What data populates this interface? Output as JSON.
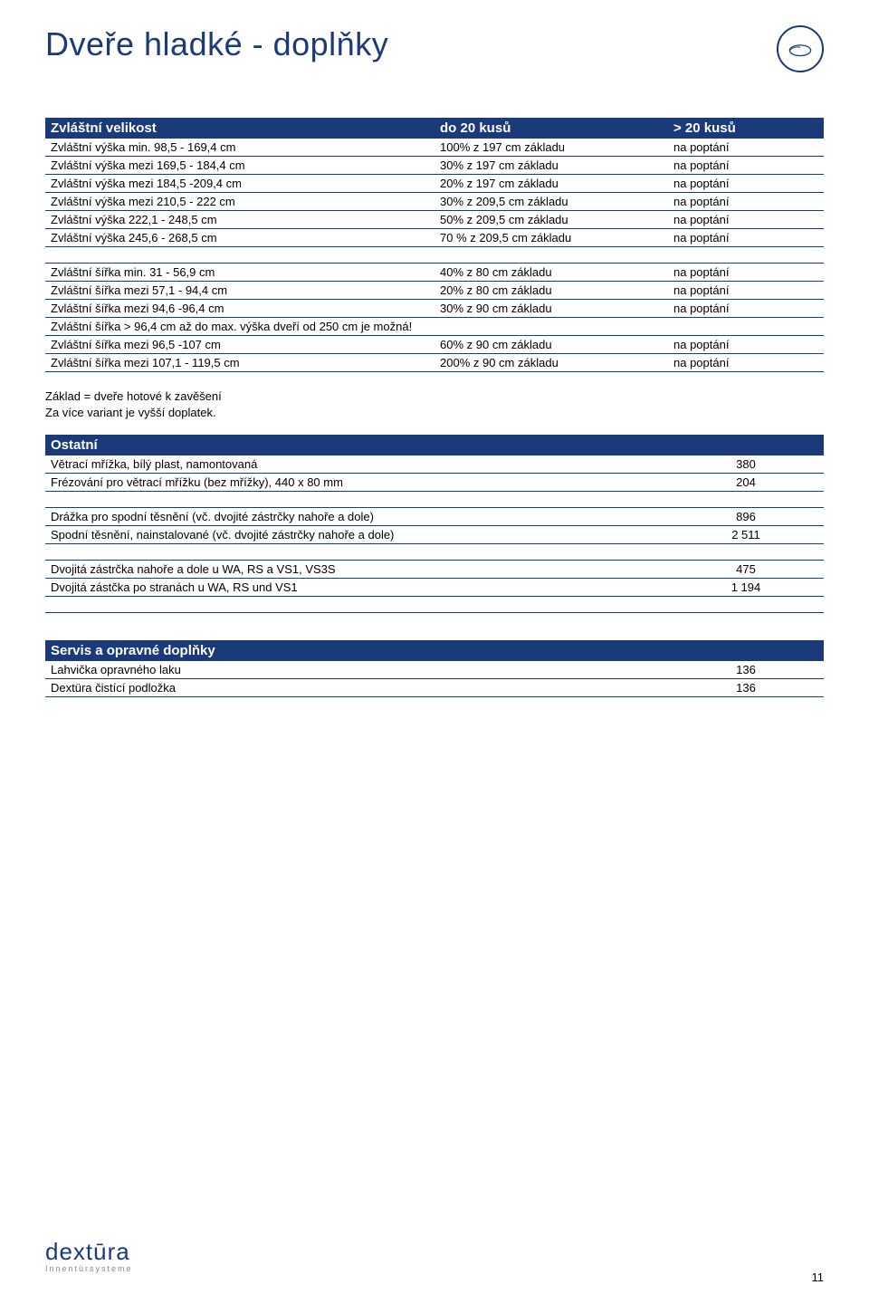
{
  "title": "Dveře hladké - doplňky",
  "page_number": "11",
  "footer_brand": "dextūra",
  "footer_sub": "Innentürsysteme",
  "colors": {
    "header_bg": "#1a3a7a",
    "header_fg": "#ffffff",
    "rule": "#1a3a7a",
    "text": "#000000",
    "bg": "#ffffff"
  },
  "section1": {
    "headers": [
      "Zvláštní velikost",
      "do 20 kusů",
      "> 20 kusů"
    ],
    "rows": [
      [
        "Zvláštní výška min. 98,5 - 169,4 cm",
        "100% z 197 cm základu",
        "na poptání"
      ],
      [
        "Zvláštní výška mezi 169,5 - 184,4 cm",
        "30% z 197 cm základu",
        "na poptání"
      ],
      [
        "Zvláštní výška mezi 184,5 -209,4 cm",
        "20% z 197 cm základu",
        "na poptání"
      ],
      [
        "Zvláštní výška mezi 210,5 - 222 cm",
        "30% z 209,5 cm základu",
        "na poptání"
      ],
      [
        "Zvláštní výška 222,1 - 248,5 cm",
        "50% z 209,5 cm základu",
        "na poptání"
      ],
      [
        "Zvláštní výška 245,6 - 268,5 cm",
        "70 % z 209,5 cm základu",
        "na poptání"
      ]
    ],
    "rows2": [
      [
        "Zvláštní šířka min. 31 - 56,9 cm",
        "40% z 80 cm základu",
        "na poptání"
      ],
      [
        "Zvláštní šířka mezi 57,1 -  94,4 cm",
        "20% z 80 cm základu",
        "na poptání"
      ],
      [
        "Zvláštní šířka mezi 94,6 -96,4 cm",
        "30% z 90 cm základu",
        "na poptání"
      ],
      [
        "Zvláštní šířka > 96,4 cm až do max. výška dveří od 250 cm je možná!",
        "",
        ""
      ],
      [
        "Zvláštní šířka mezi 96,5 -107 cm",
        "60% z 90 cm základu",
        "na poptání"
      ],
      [
        "Zvláštní šířka mezi 107,1 - 119,5 cm",
        "200% z 90 cm základu",
        "na poptání"
      ]
    ]
  },
  "note1": "Základ = dveře hotové k zavěšení",
  "note2": "Za více variant je vyšší doplatek.",
  "section2": {
    "header": "Ostatní",
    "rows": [
      [
        "Větrací mřížka, bílý plast, namontovaná",
        "380"
      ],
      [
        "Frézování pro větrací mřížku (bez mřížky), 440 x 80 mm",
        "204"
      ]
    ],
    "rows2": [
      [
        "Drážka pro spodní těsnění (vč. dvojité zástrčky nahoře a dole)",
        "896"
      ],
      [
        "Spodní těsnění, nainstalované (vč. dvojité zástrčky nahoře a dole)",
        "2 511"
      ]
    ],
    "rows3": [
      [
        "Dvojitá zástrčka nahoře a dole u WA, RS a VS1, VS3S",
        "475"
      ],
      [
        "Dvojitá zástčka po stranách u WA, RS und VS1",
        "1 194"
      ]
    ]
  },
  "section3": {
    "header": "Servis a opravné doplňky",
    "rows": [
      [
        "Lahvička opravného laku",
        "136"
      ],
      [
        "Dextüra čistící podložka",
        "136"
      ]
    ]
  }
}
